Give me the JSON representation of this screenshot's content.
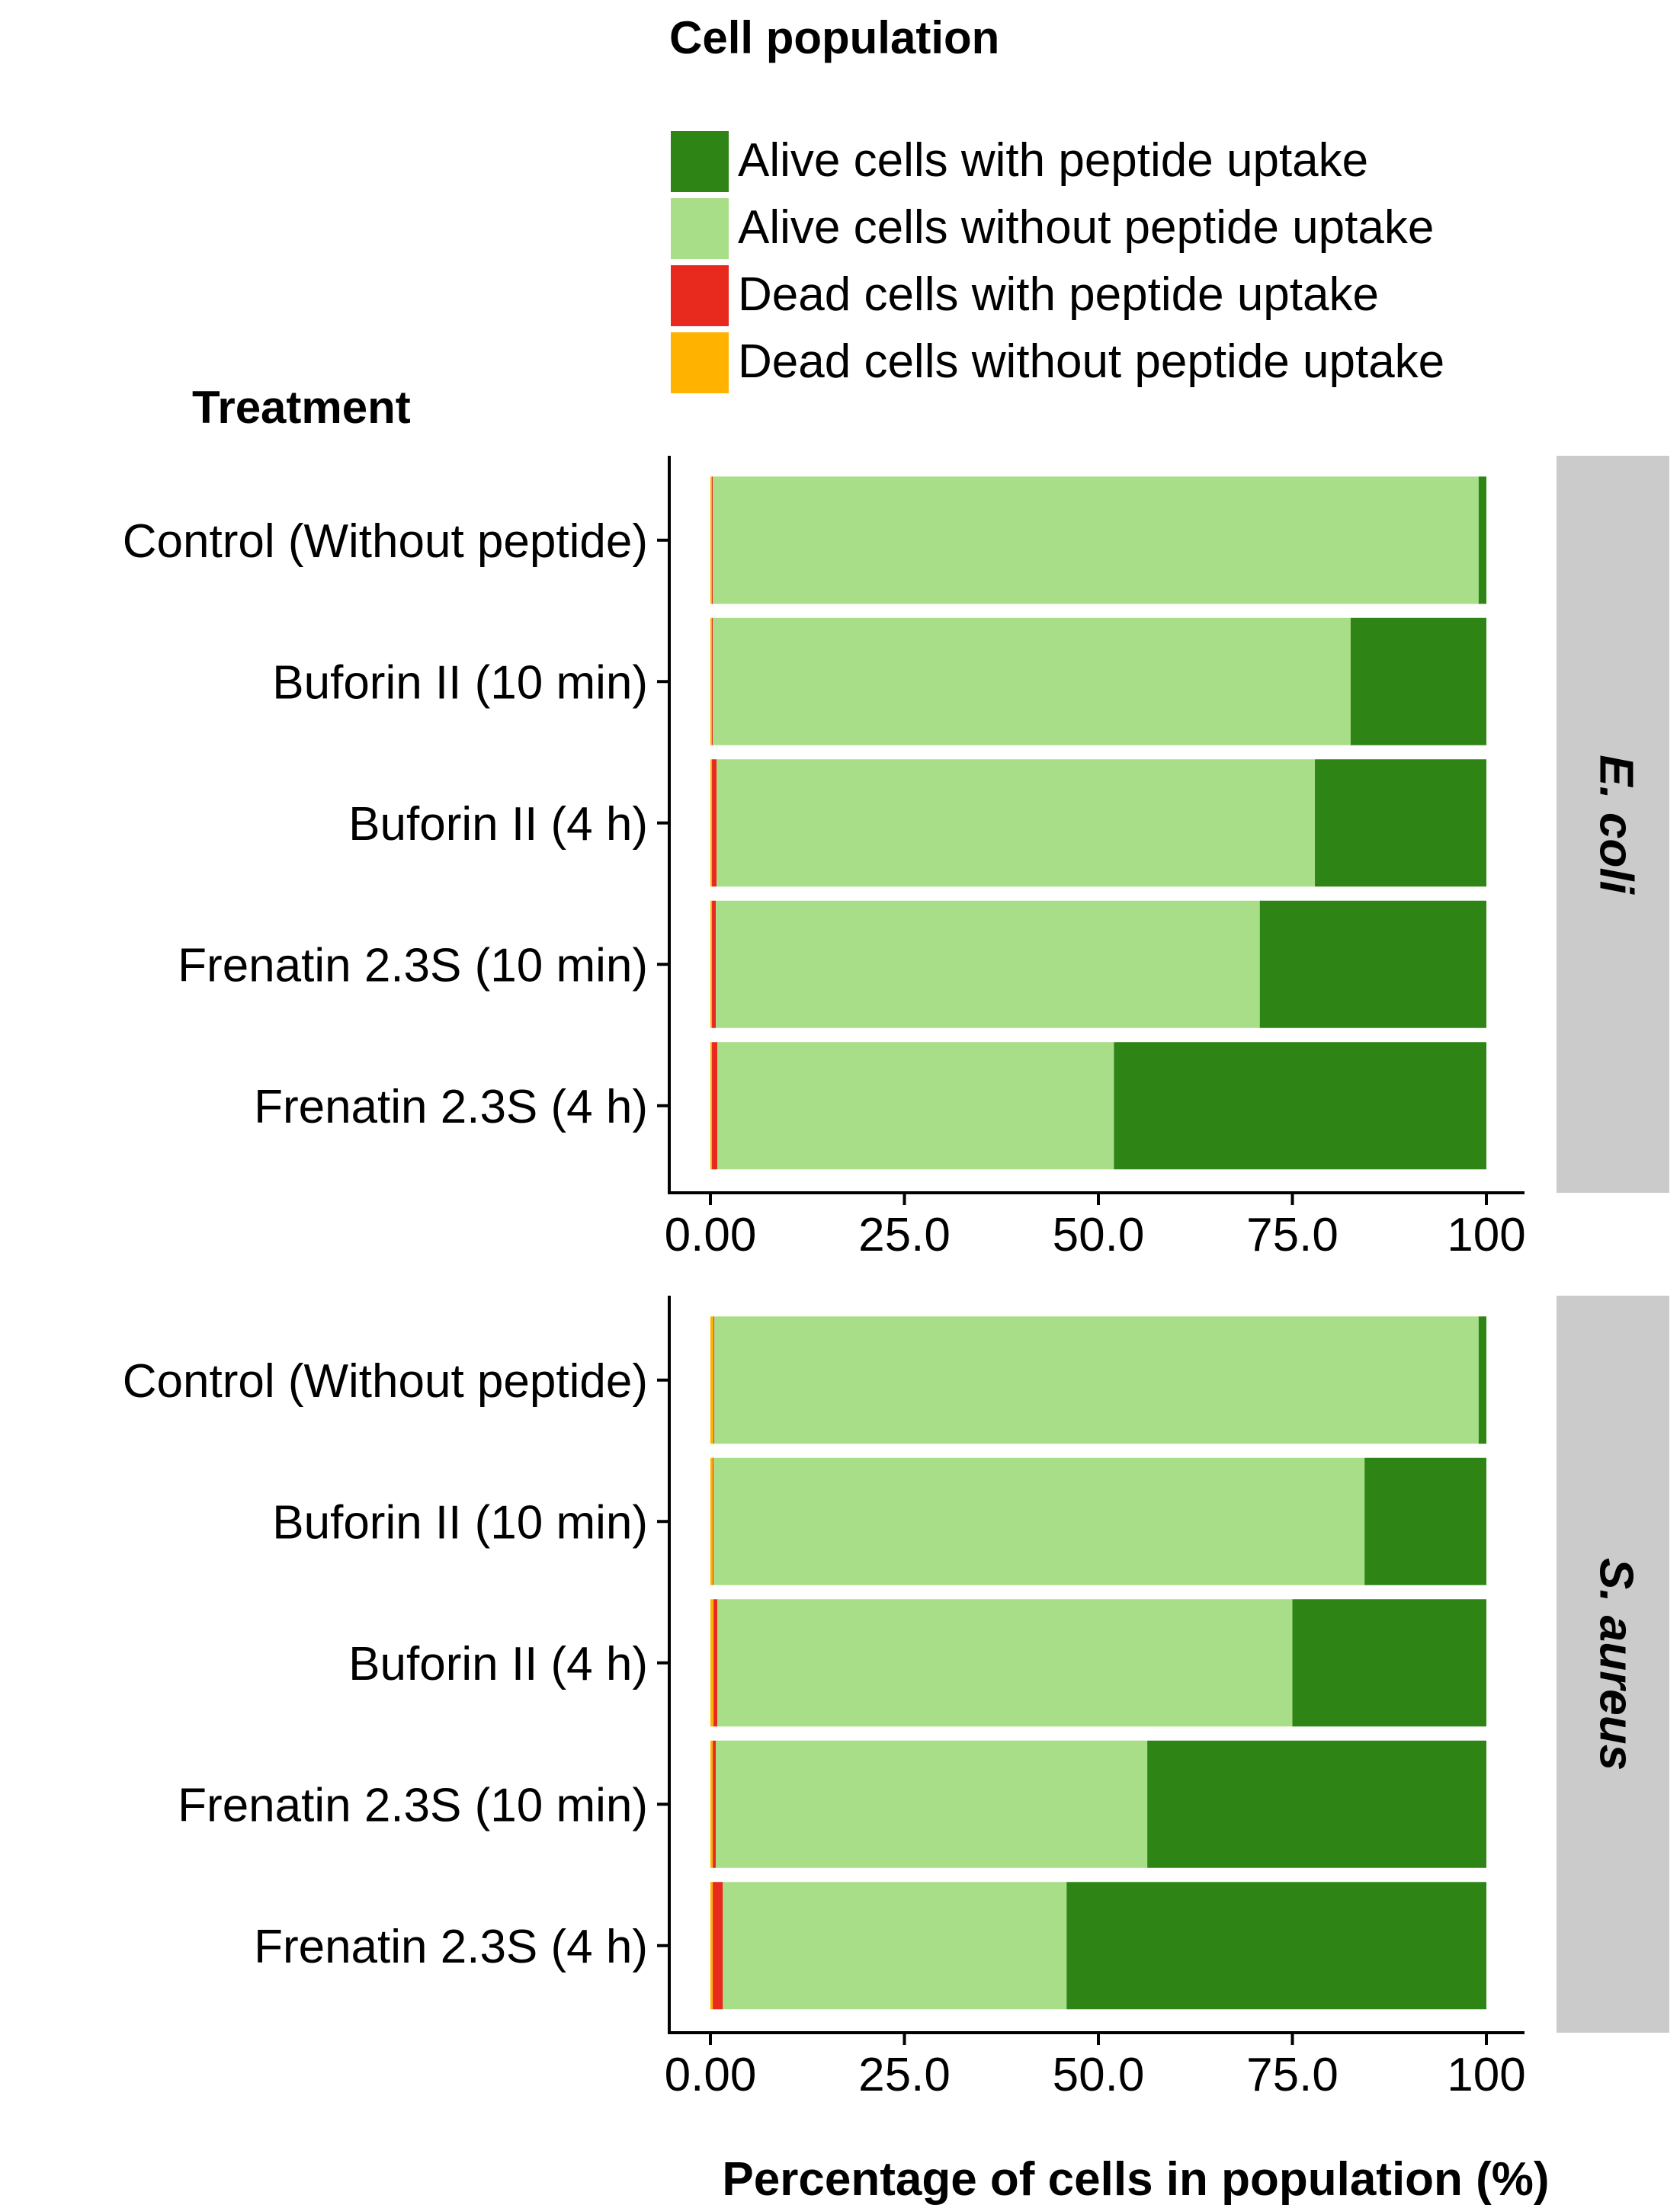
{
  "chart_data": {
    "type": "bar",
    "orientation": "horizontal",
    "stacked": true,
    "legend": {
      "title": "Cell population",
      "placement": "top",
      "entries": [
        {
          "label": "Alive cells with peptide uptake",
          "color": "#2e8516"
        },
        {
          "label": "Alive cells without peptide uptake",
          "color": "#a8de88"
        },
        {
          "label": "Dead cells with peptide uptake",
          "color": "#e8291e"
        },
        {
          "label": "Dead cells without peptide uptake",
          "color": "#ffb300"
        }
      ]
    },
    "ylabel": "Treatment",
    "xlabel": "Percentage of cells in population (%)",
    "xlim": [
      0,
      100
    ],
    "xticks": [
      "0.00",
      "25.0",
      "50.0",
      "75.0",
      "100"
    ],
    "xtick_values": [
      0,
      25,
      50,
      75,
      100
    ],
    "categories": [
      "Control (Without peptide)",
      "Buforin II (10 min)",
      "Buforin II (4 h)",
      "Frenatin 2.3S (10 min)",
      "Frenatin 2.3S (4 h)"
    ],
    "stack_order": [
      "Dead cells without peptide uptake",
      "Dead cells with peptide uptake",
      "Alive cells without peptide uptake",
      "Alive cells with peptide uptake"
    ],
    "panels": [
      {
        "strip": "E. coli",
        "series": [
          {
            "name": "Dead cells without peptide uptake",
            "values": [
              0.2,
              0.2,
              0.2,
              0.2,
              0.2
            ]
          },
          {
            "name": "Dead cells with peptide uptake",
            "values": [
              0.1,
              0.1,
              0.6,
              0.5,
              0.7
            ]
          },
          {
            "name": "Alive cells without peptide uptake",
            "values": [
              98.7,
              82.2,
              77.1,
              70.1,
              51.1
            ]
          },
          {
            "name": "Alive cells with peptide uptake",
            "values": [
              1.0,
              17.5,
              22.1,
              29.2,
              48.0
            ]
          }
        ]
      },
      {
        "strip": "S. aureus",
        "series": [
          {
            "name": "Dead cells without peptide uptake",
            "values": [
              0.4,
              0.3,
              0.4,
              0.3,
              0.3
            ]
          },
          {
            "name": "Dead cells with peptide uptake",
            "values": [
              0.1,
              0.1,
              0.5,
              0.4,
              1.3
            ]
          },
          {
            "name": "Alive cells without peptide uptake",
            "values": [
              98.5,
              83.9,
              74.1,
              55.6,
              44.3
            ]
          },
          {
            "name": "Alive cells with peptide uptake",
            "values": [
              1.0,
              15.7,
              25.0,
              43.7,
              54.1
            ]
          }
        ]
      }
    ]
  }
}
